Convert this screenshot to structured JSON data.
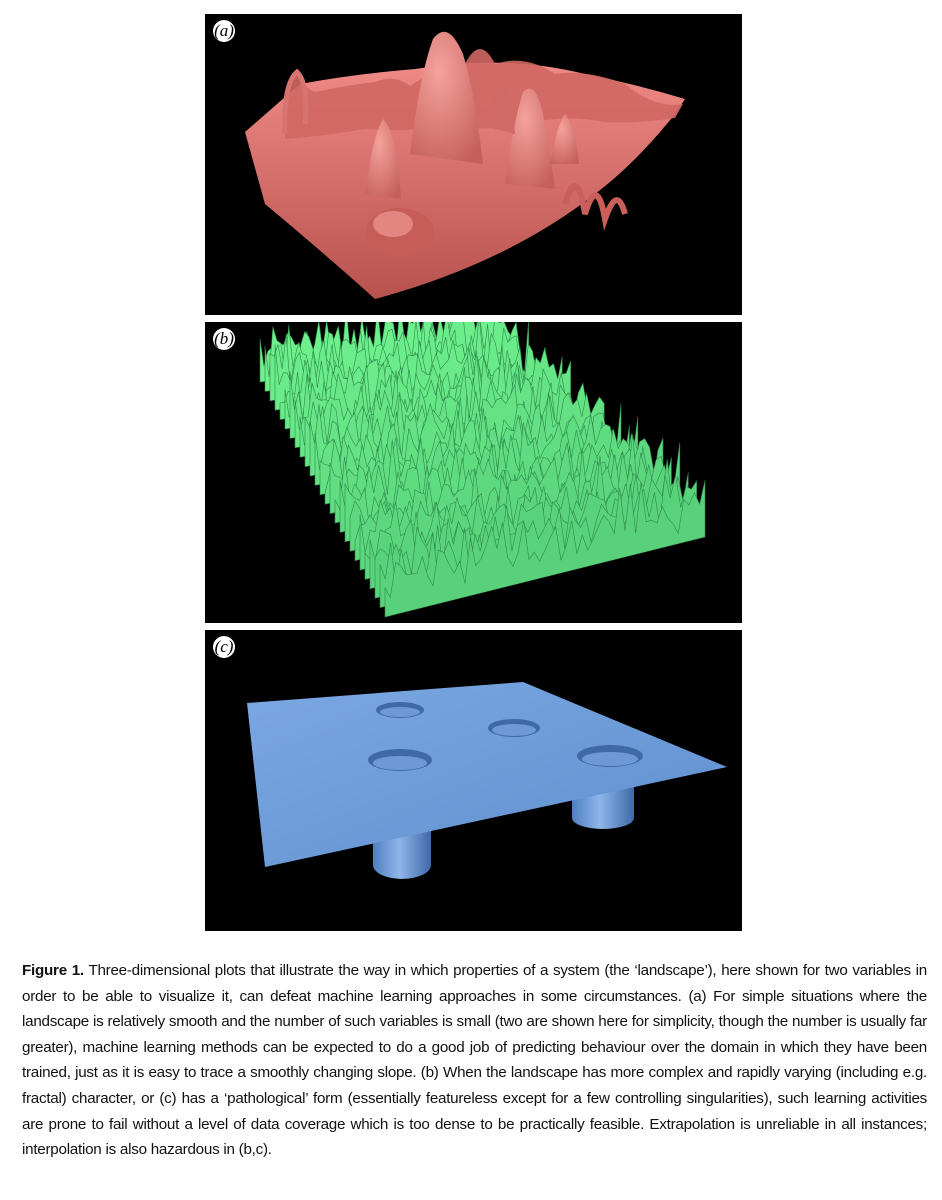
{
  "panels": [
    {
      "label": "(a)",
      "surface_color": "#d9706e",
      "depiction": "smooth-landscape"
    },
    {
      "label": "(b)",
      "surface_color": "#4fd07a",
      "depiction": "rough-fractal-landscape"
    },
    {
      "label": "(c)",
      "surface_color": "#6d9ad6",
      "depiction": "flat-plane-with-singularities"
    }
  ],
  "caption": {
    "figure_label": "Figure 1.",
    "text": "Three-dimensional plots that illustrate the way in which properties of a system (the ‘landscape’), here shown for two variables in order to be able to visualize it, can defeat machine learning approaches in some circumstances. (a) For simple situations where the landscape is relatively smooth and the number of such variables is small (two are shown here for simplicity, though the number is usually far greater), machine learning methods can be expected to do a good job of predicting behaviour over the domain in which they have been trained, just as it is easy to trace a smoothly changing slope. (b) When the landscape has more complex and rapidly varying (including e.g. fractal) character, or (c) has a ‘pathological’ form (essentially featureless except for a few controlling singularities), such learning activities are prone to fail without a level of data coverage which is too dense to be practically feasible. Extrapolation is unreliable in all instances; interpolation is also hazardous in (b,c)."
  }
}
